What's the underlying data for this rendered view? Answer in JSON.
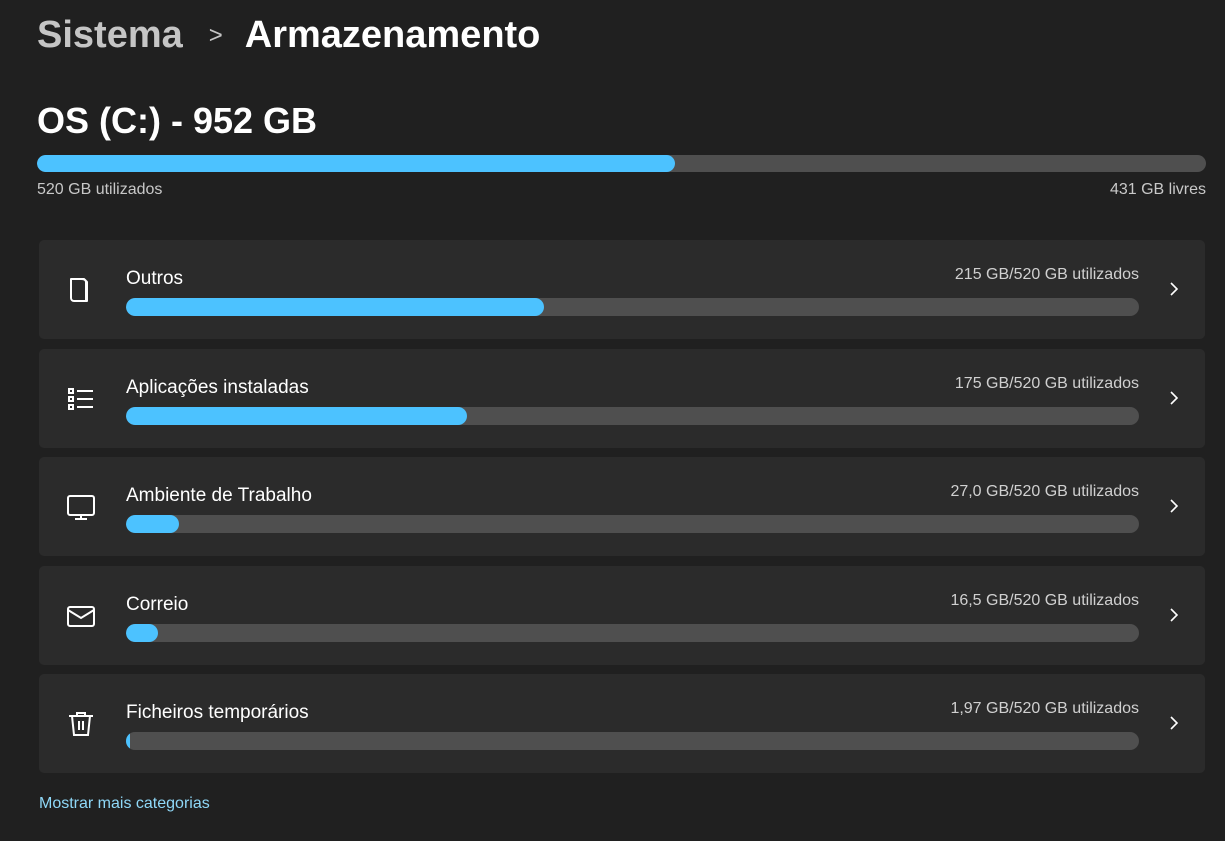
{
  "breadcrumb": {
    "parent": "Sistema",
    "current": "Armazenamento"
  },
  "drive": {
    "title": "OS (C:) - 952 GB",
    "used_label": "520 GB utilizados",
    "free_label": "431 GB livres",
    "used_fraction": 0.546
  },
  "accent": "#4cc2ff",
  "categories": [
    {
      "label": "Outros",
      "usage": "215 GB/520 GB utilizados",
      "fraction": 0.413,
      "icon": "document-icon"
    },
    {
      "label": "Aplicações instaladas",
      "usage": "175 GB/520 GB utilizados",
      "fraction": 0.337,
      "icon": "list-icon"
    },
    {
      "label": "Ambiente de Trabalho",
      "usage": "27,0 GB/520 GB utilizados",
      "fraction": 0.052,
      "icon": "monitor-icon"
    },
    {
      "label": "Correio",
      "usage": "16,5 GB/520 GB utilizados",
      "fraction": 0.032,
      "icon": "mail-icon"
    },
    {
      "label": "Ficheiros temporários",
      "usage": "1,97 GB/520 GB utilizados",
      "fraction": 0.004,
      "icon": "trash-icon"
    }
  ],
  "show_more": "Mostrar mais categorias"
}
